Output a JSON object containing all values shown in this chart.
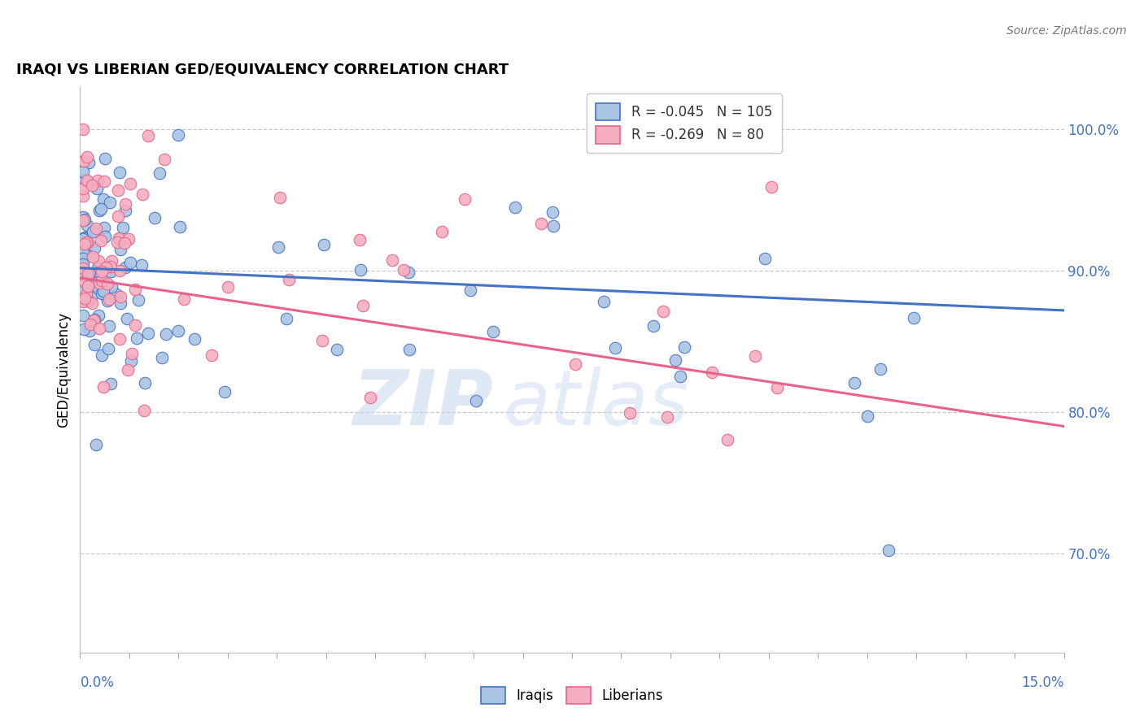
{
  "title": "IRAQI VS LIBERIAN GED/EQUIVALENCY CORRELATION CHART",
  "source": "Source: ZipAtlas.com",
  "ylabel": "GED/Equivalency",
  "xmin": 0.0,
  "xmax": 15.0,
  "ymin": 63.0,
  "ymax": 103.0,
  "iraqi_R": -0.045,
  "iraqi_N": 105,
  "liberian_R": -0.269,
  "liberian_N": 80,
  "iraqi_color": "#aac4e4",
  "liberian_color": "#f5aec0",
  "iraqi_line_color": "#4472c4",
  "liberian_line_color": "#e8638a",
  "watermark_zip": "ZIP",
  "watermark_atlas": "atlas",
  "grid_color": "#c8c8c8",
  "right_yticks": [
    70.0,
    80.0,
    90.0,
    100.0
  ],
  "right_yticklabels": [
    "70.0%",
    "80.0%",
    "90.0%",
    "100.0%"
  ],
  "axis_label_color": "#4472c4",
  "background_color": "#ffffff",
  "title_fontsize": 13,
  "tick_label_fontsize": 12,
  "legend_fontsize": 12,
  "source_fontsize": 10
}
